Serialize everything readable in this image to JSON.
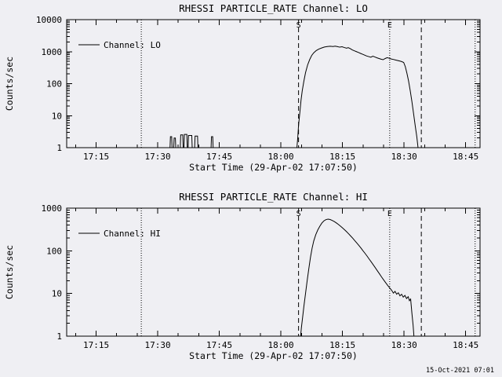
{
  "page": {
    "background": "#efeff3",
    "foreground": "#000000",
    "timestamp": "15-Oct-2021 07:01"
  },
  "chart_data": [
    {
      "type": "line",
      "title": "RHESSI PARTICLE_RATE Channel: LO",
      "xlabel": "Start Time (29-Apr-02 17:07:50)",
      "ylabel": "Counts/sec",
      "legend": "Channel: LO",
      "y_scale": "log",
      "grid": false,
      "x_domain_minutes": [
        7.83,
        108.5
      ],
      "y_domain": [
        1,
        10000
      ],
      "y_ticks": [
        1,
        10,
        100,
        1000,
        10000
      ],
      "x_ticks": [
        {
          "t": 15,
          "label": "17:15"
        },
        {
          "t": 30,
          "label": "17:30"
        },
        {
          "t": 45,
          "label": "17:45"
        },
        {
          "t": 60,
          "label": "18:00"
        },
        {
          "t": 75,
          "label": "18:15"
        },
        {
          "t": 90,
          "label": "18:30"
        },
        {
          "t": 105,
          "label": "18:45"
        }
      ],
      "dotted_lines_minutes": [
        26,
        86.5,
        107.3
      ],
      "dashed_lines_minutes": [
        64.3,
        94.2
      ],
      "markers": [
        {
          "x": 64.3,
          "label": "S"
        },
        {
          "x": 86.5,
          "label": "E"
        }
      ],
      "series_points_min_counts": [
        [
          7.83,
          1
        ],
        [
          33.0,
          1
        ],
        [
          33.1,
          2.2
        ],
        [
          33.4,
          2.2
        ],
        [
          33.5,
          1
        ],
        [
          33.9,
          1
        ],
        [
          34.0,
          2.0
        ],
        [
          34.3,
          2.0
        ],
        [
          34.4,
          1
        ],
        [
          35.5,
          1
        ],
        [
          35.6,
          2.5
        ],
        [
          36.1,
          2.5
        ],
        [
          36.2,
          1
        ],
        [
          36.4,
          1
        ],
        [
          36.5,
          2.6
        ],
        [
          37.1,
          2.6
        ],
        [
          37.2,
          1
        ],
        [
          37.4,
          1
        ],
        [
          37.5,
          2.4
        ],
        [
          38.3,
          2.4
        ],
        [
          38.4,
          1
        ],
        [
          39.0,
          1
        ],
        [
          39.1,
          2.3
        ],
        [
          39.7,
          2.3
        ],
        [
          39.8,
          1
        ],
        [
          43.0,
          1
        ],
        [
          43.1,
          2.2
        ],
        [
          43.4,
          2.2
        ],
        [
          43.5,
          1
        ],
        [
          63.9,
          1
        ],
        [
          64.1,
          2
        ],
        [
          64.3,
          5
        ],
        [
          64.6,
          12
        ],
        [
          64.9,
          30
        ],
        [
          65.2,
          60
        ],
        [
          65.6,
          120
        ],
        [
          66.0,
          220
        ],
        [
          66.5,
          380
        ],
        [
          67.0,
          560
        ],
        [
          67.5,
          760
        ],
        [
          68.0,
          920
        ],
        [
          68.6,
          1080
        ],
        [
          69.2,
          1200
        ],
        [
          69.9,
          1300
        ],
        [
          70.6,
          1390
        ],
        [
          71.3,
          1440
        ],
        [
          72.0,
          1470
        ],
        [
          72.7,
          1440
        ],
        [
          73.2,
          1480
        ],
        [
          73.8,
          1430
        ],
        [
          74.3,
          1380
        ],
        [
          74.9,
          1420
        ],
        [
          75.4,
          1350
        ],
        [
          76.0,
          1280
        ],
        [
          76.4,
          1330
        ],
        [
          76.9,
          1240
        ],
        [
          77.4,
          1130
        ],
        [
          77.9,
          1060
        ],
        [
          78.4,
          1000
        ],
        [
          78.9,
          940
        ],
        [
          79.4,
          880
        ],
        [
          79.9,
          830
        ],
        [
          80.4,
          780
        ],
        [
          80.9,
          730
        ],
        [
          81.4,
          700
        ],
        [
          81.9,
          670
        ],
        [
          82.4,
          720
        ],
        [
          82.9,
          680
        ],
        [
          83.4,
          640
        ],
        [
          83.9,
          610
        ],
        [
          84.4,
          580
        ],
        [
          84.9,
          560
        ],
        [
          85.4,
          610
        ],
        [
          85.9,
          650
        ],
        [
          86.4,
          620
        ],
        [
          86.9,
          590
        ],
        [
          87.4,
          570
        ],
        [
          87.9,
          550
        ],
        [
          88.4,
          530
        ],
        [
          88.9,
          510
        ],
        [
          89.4,
          490
        ],
        [
          89.9,
          460
        ],
        [
          90.3,
          340
        ],
        [
          90.7,
          210
        ],
        [
          91.1,
          120
        ],
        [
          91.5,
          60
        ],
        [
          91.9,
          28
        ],
        [
          92.3,
          12
        ],
        [
          92.7,
          5
        ],
        [
          93.1,
          2.2
        ],
        [
          93.4,
          1
        ]
      ]
    },
    {
      "type": "line",
      "title": "RHESSI PARTICLE_RATE Channel: HI",
      "xlabel": "Start Time (29-Apr-02 17:07:50)",
      "ylabel": "Counts/sec",
      "legend": "Channel: HI",
      "y_scale": "log",
      "grid": false,
      "x_domain_minutes": [
        7.83,
        108.5
      ],
      "y_domain": [
        1,
        1000
      ],
      "y_ticks": [
        1,
        10,
        100,
        1000
      ],
      "x_ticks": [
        {
          "t": 15,
          "label": "17:15"
        },
        {
          "t": 30,
          "label": "17:30"
        },
        {
          "t": 45,
          "label": "17:45"
        },
        {
          "t": 60,
          "label": "18:00"
        },
        {
          "t": 75,
          "label": "18:15"
        },
        {
          "t": 90,
          "label": "18:30"
        },
        {
          "t": 105,
          "label": "18:45"
        }
      ],
      "dotted_lines_minutes": [
        26,
        86.5,
        107.3
      ],
      "dashed_lines_minutes": [
        64.3,
        94.2
      ],
      "markers": [
        {
          "x": 64.3,
          "label": "S"
        },
        {
          "x": 86.5,
          "label": "E"
        }
      ],
      "series_points_min_counts": [
        [
          7.83,
          1
        ],
        [
          64.8,
          1
        ],
        [
          65.0,
          1.6
        ],
        [
          65.3,
          2.8
        ],
        [
          65.6,
          5
        ],
        [
          66.0,
          10
        ],
        [
          66.4,
          20
        ],
        [
          66.8,
          38
        ],
        [
          67.2,
          70
        ],
        [
          67.6,
          115
        ],
        [
          68.0,
          170
        ],
        [
          68.5,
          240
        ],
        [
          69.0,
          310
        ],
        [
          69.5,
          380
        ],
        [
          70.0,
          450
        ],
        [
          70.5,
          505
        ],
        [
          71.0,
          540
        ],
        [
          71.5,
          552
        ],
        [
          72.0,
          540
        ],
        [
          72.5,
          515
        ],
        [
          73.0,
          485
        ],
        [
          73.5,
          450
        ],
        [
          74.0,
          415
        ],
        [
          74.5,
          380
        ],
        [
          75.0,
          345
        ],
        [
          75.5,
          312
        ],
        [
          76.0,
          280
        ],
        [
          76.5,
          250
        ],
        [
          77.0,
          222
        ],
        [
          77.5,
          197
        ],
        [
          78.0,
          173
        ],
        [
          78.5,
          152
        ],
        [
          79.0,
          133
        ],
        [
          79.5,
          116
        ],
        [
          80.0,
          100
        ],
        [
          80.5,
          87
        ],
        [
          81.0,
          75
        ],
        [
          81.5,
          64
        ],
        [
          82.0,
          55
        ],
        [
          82.5,
          47
        ],
        [
          83.0,
          40
        ],
        [
          83.5,
          34
        ],
        [
          84.0,
          29
        ],
        [
          84.5,
          24.5
        ],
        [
          85.0,
          21
        ],
        [
          85.5,
          18
        ],
        [
          86.0,
          15.5
        ],
        [
          86.5,
          13.5
        ],
        [
          87.0,
          11.8
        ],
        [
          87.4,
          10.2
        ],
        [
          87.8,
          11.2
        ],
        [
          88.2,
          9.6
        ],
        [
          88.6,
          10.4
        ],
        [
          89.0,
          8.8
        ],
        [
          89.4,
          9.6
        ],
        [
          89.8,
          8.2
        ],
        [
          90.2,
          9.0
        ],
        [
          90.6,
          7.6
        ],
        [
          91.0,
          8.4
        ],
        [
          91.3,
          6.8
        ],
        [
          91.6,
          7.4
        ],
        [
          91.9,
          3.5
        ],
        [
          92.2,
          1.8
        ],
        [
          92.4,
          1
        ]
      ]
    }
  ]
}
